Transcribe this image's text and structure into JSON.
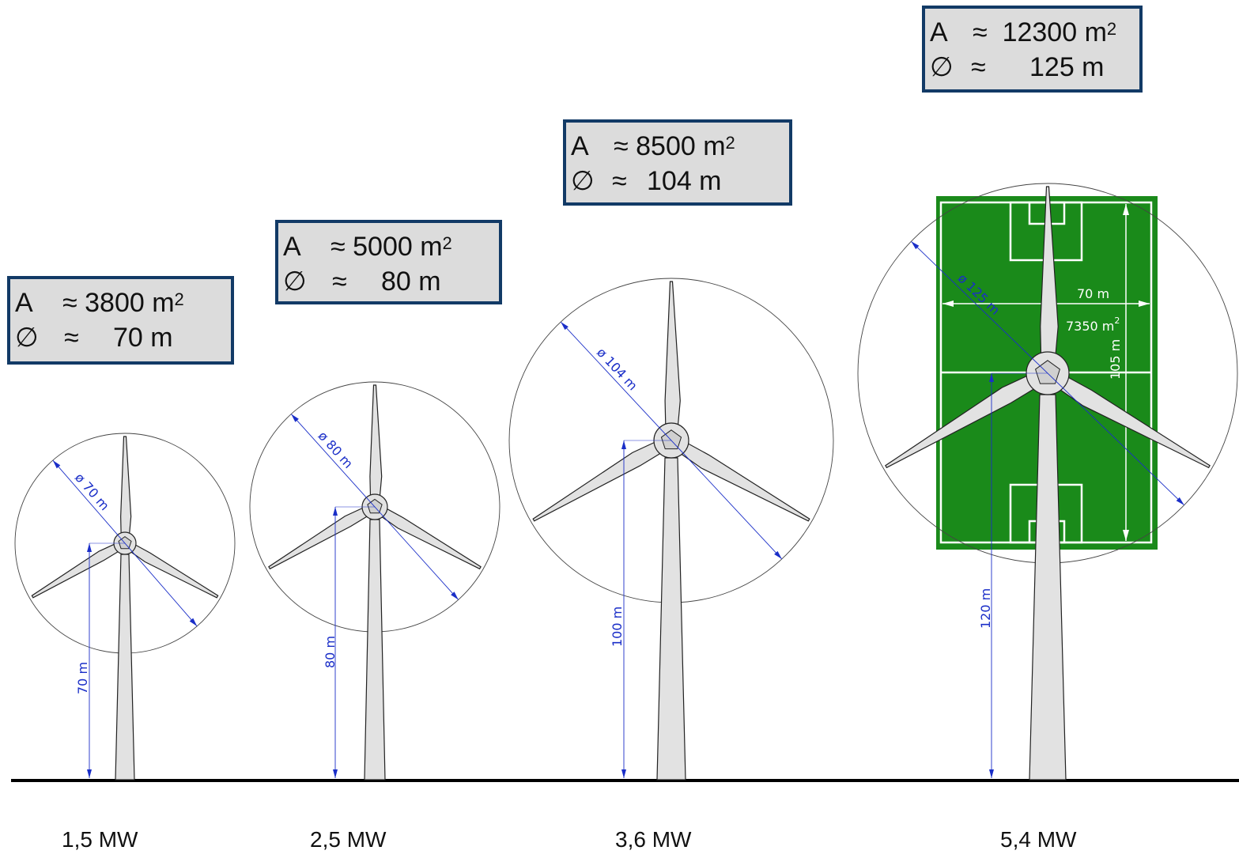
{
  "turbines": [
    {
      "power": "1,5 MW",
      "area_label": "A",
      "area_approx": "≈",
      "area_value": "3800 m",
      "area_unit_exp": "2",
      "diameter_symbol": "∅",
      "diameter_approx": "≈",
      "diameter_value": "70 m",
      "rotor_dim_label": "ø 70 m",
      "hub_height_label": "70 m"
    },
    {
      "power": "2,5 MW",
      "area_label": "A",
      "area_approx": "≈",
      "area_value": "5000 m",
      "area_unit_exp": "2",
      "diameter_symbol": "∅",
      "diameter_approx": "≈",
      "diameter_value": "80 m",
      "rotor_dim_label": "ø 80 m",
      "hub_height_label": "80 m"
    },
    {
      "power": "3,6 MW",
      "area_label": "A",
      "area_approx": "≈",
      "area_value": "8500 m",
      "area_unit_exp": "2",
      "diameter_symbol": "∅",
      "diameter_approx": "≈",
      "diameter_value": "104 m",
      "rotor_dim_label": "ø 104 m",
      "hub_height_label": "100 m"
    },
    {
      "power": "5,4 MW",
      "area_label": "A",
      "area_approx": "≈",
      "area_value": "12300 m",
      "area_unit_exp": "2",
      "diameter_symbol": "∅",
      "diameter_approx": "≈",
      "diameter_value": "125 m",
      "rotor_dim_label": "ø 125 m",
      "hub_height_label": "120 m"
    }
  ],
  "football_pitch": {
    "width_label": "70 m",
    "area_label": "7350 m",
    "area_exp": "2",
    "length_label": "105 m",
    "color": "#1a8a1a"
  },
  "colors": {
    "box_border": "#123a66",
    "box_fill": "#dcdcdc",
    "dimension": "#1a2ec8",
    "turbine_fill": "#e2e2e2"
  }
}
